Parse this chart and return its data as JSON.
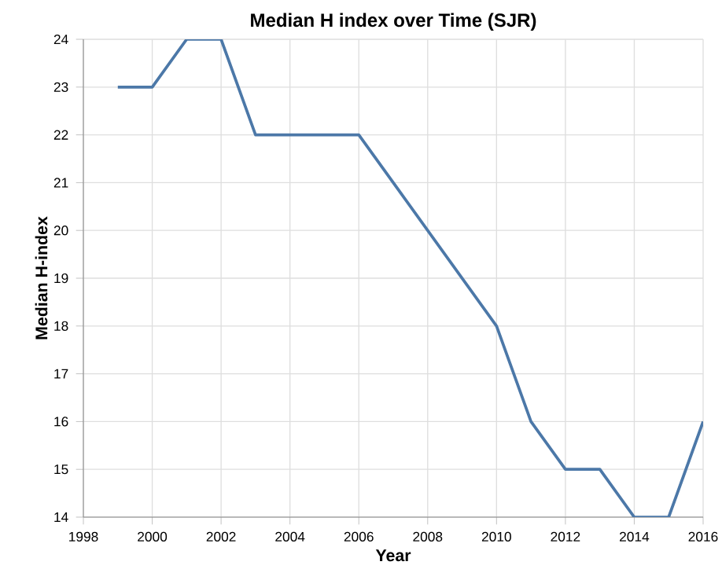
{
  "chart_data": {
    "type": "line",
    "title": "Median H index over Time (SJR)",
    "xlabel": "Year",
    "ylabel": "Median H-index",
    "x": [
      1999,
      2000,
      2001,
      2002,
      2003,
      2004,
      2005,
      2006,
      2010,
      2011,
      2012,
      2013,
      2014,
      2015,
      2016
    ],
    "series": [
      {
        "color": "#4c78a8",
        "values": [
          23,
          23,
          24,
          24,
          22,
          22,
          22,
          22,
          18,
          16,
          15,
          15,
          14,
          14,
          16
        ]
      }
    ],
    "xlim": [
      1998,
      2016
    ],
    "xticks": [
      1998,
      2000,
      2002,
      2004,
      2006,
      2008,
      2010,
      2012,
      2014,
      2016
    ],
    "ylim": [
      14,
      24
    ],
    "yticks": [
      14,
      15,
      16,
      17,
      18,
      19,
      20,
      21,
      22,
      23,
      24
    ],
    "grid": true,
    "marker": "none",
    "line_style": "solid"
  }
}
